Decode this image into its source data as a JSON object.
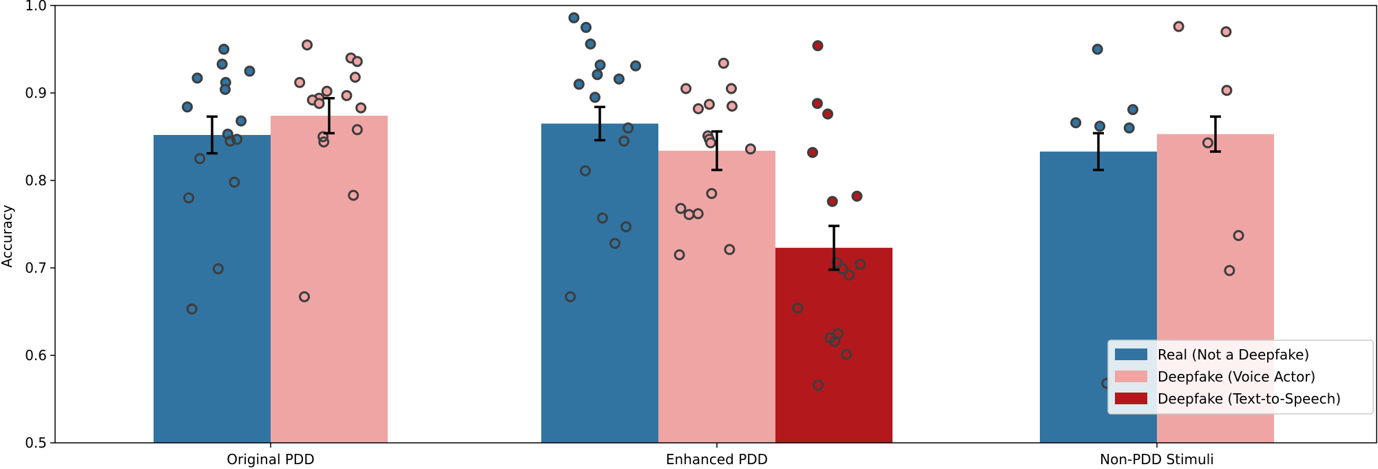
{
  "chart_data": {
    "type": "bar",
    "title": "",
    "xlabel": "",
    "ylabel": "Accuracy",
    "ylim": [
      0.5,
      1.0
    ],
    "yticks": [
      "0.5",
      "0.6",
      "0.7",
      "0.8",
      "0.9",
      "1.0"
    ],
    "grid": false,
    "legend_position": "lower-right",
    "categories": [
      "Original PDD",
      "Enhanced PDD",
      "Non-PDD Stimuli"
    ],
    "series": [
      {
        "name": "Real (Not a Deepfake)",
        "color": "#3274a1",
        "values": [
          0.852,
          0.865,
          0.833
        ],
        "errors": [
          0.021,
          0.019,
          0.021
        ],
        "points": [
          [
            0.95,
            0.917,
            0.933,
            0.925,
            0.912,
            0.904,
            0.884,
            0.868,
            0.853,
            0.847,
            0.845,
            0.825,
            0.798,
            0.78,
            0.699,
            0.653
          ],
          [
            0.986,
            0.975,
            0.956,
            0.932,
            0.931,
            0.921,
            0.916,
            0.91,
            0.895,
            0.86,
            0.845,
            0.811,
            0.757,
            0.747,
            0.728,
            0.667
          ],
          [
            0.95,
            0.881,
            0.866,
            0.862,
            0.86,
            0.568
          ]
        ]
      },
      {
        "name": "Deepfake (Voice Actor)",
        "color": "#f0a5a5",
        "values": [
          0.874,
          0.834,
          0.853
        ],
        "errors": [
          0.02,
          0.022,
          0.02
        ],
        "points": [
          [
            0.955,
            0.94,
            0.936,
            0.918,
            0.912,
            0.902,
            0.897,
            0.894,
            0.892,
            0.888,
            0.883,
            0.858,
            0.85,
            0.844,
            0.783,
            0.667
          ],
          [
            0.934,
            0.905,
            0.905,
            0.887,
            0.885,
            0.882,
            0.851,
            0.847,
            0.843,
            0.836,
            0.785,
            0.768,
            0.762,
            0.761,
            0.721,
            0.715
          ],
          [
            0.976,
            0.97,
            0.903,
            0.843,
            0.737,
            0.697
          ]
        ]
      },
      {
        "name": "Deepfake (Text-to-Speech)",
        "color": "#b2181c",
        "values": [
          null,
          0.723,
          null
        ],
        "errors": [
          null,
          0.025,
          null
        ],
        "points": [
          [],
          [
            0.954,
            0.888,
            0.876,
            0.832,
            0.782,
            0.776,
            0.706,
            0.704,
            0.699,
            0.692,
            0.654,
            0.625,
            0.62,
            0.616,
            0.601,
            0.566
          ],
          []
        ]
      }
    ]
  }
}
